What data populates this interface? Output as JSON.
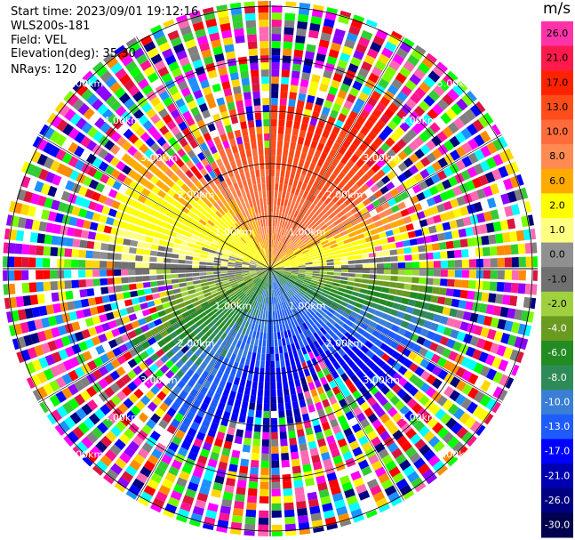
{
  "info": {
    "start_time": "Start time: 2023/09/01 19:12:16",
    "site": "WLS200s-181",
    "field": "Field: VEL",
    "elevation": "Elevation(deg): 35.30",
    "nrays": "NRays: 120"
  },
  "range_rings": {
    "labels": [
      "1.00km",
      "2.00km",
      "3.00km",
      "4.00km",
      "5.00km"
    ],
    "values_km": [
      1,
      2,
      3,
      4,
      5
    ],
    "ring_color": "#000000",
    "label_color": "#ffffff"
  },
  "colorbar": {
    "title": "m/s",
    "entries": [
      {
        "label": "26.0",
        "color": "#ff33a8"
      },
      {
        "label": "21.0",
        "color": "#ff1a4b"
      },
      {
        "label": "17.0",
        "color": "#ff2200"
      },
      {
        "label": "13.0",
        "color": "#ff4d1a"
      },
      {
        "label": "10.0",
        "color": "#ff6b3a"
      },
      {
        "label": "8.0",
        "color": "#ff8a52"
      },
      {
        "label": "6.0",
        "color": "#ffaa00"
      },
      {
        "label": "2.0",
        "color": "#ffff00"
      },
      {
        "label": "1.0",
        "color": "#ffff80"
      },
      {
        "label": "0.0",
        "color": "#909090"
      },
      {
        "label": "-1.0",
        "color": "#707070"
      },
      {
        "label": "-2.0",
        "color": "#a0d040"
      },
      {
        "label": "-4.0",
        "color": "#6a9a20"
      },
      {
        "label": "-6.0",
        "color": "#228b22"
      },
      {
        "label": "-8.0",
        "color": "#2e8b57"
      },
      {
        "label": "-10.0",
        "color": "#3a7fd5"
      },
      {
        "label": "-13.0",
        "color": "#1e5cff"
      },
      {
        "label": "-17.0",
        "color": "#0000ff"
      },
      {
        "label": "-21.0",
        "color": "#0000b0"
      },
      {
        "label": "-26.0",
        "color": "#000080"
      },
      {
        "label": "-30.0",
        "color": "#000050"
      }
    ]
  },
  "noise_colors": [
    "#ff00ff",
    "#ffff00",
    "#00ffff",
    "#ff0000",
    "#0000ff",
    "#00ff00",
    "#ff8c00",
    "#8b00ff",
    "#ffffff",
    "#ff1493",
    "#1e90ff",
    "#7cfc00",
    "#000080",
    "#ff69b4",
    "#808080",
    "#ffd700",
    "#dc143c",
    "#32cd32"
  ]
}
